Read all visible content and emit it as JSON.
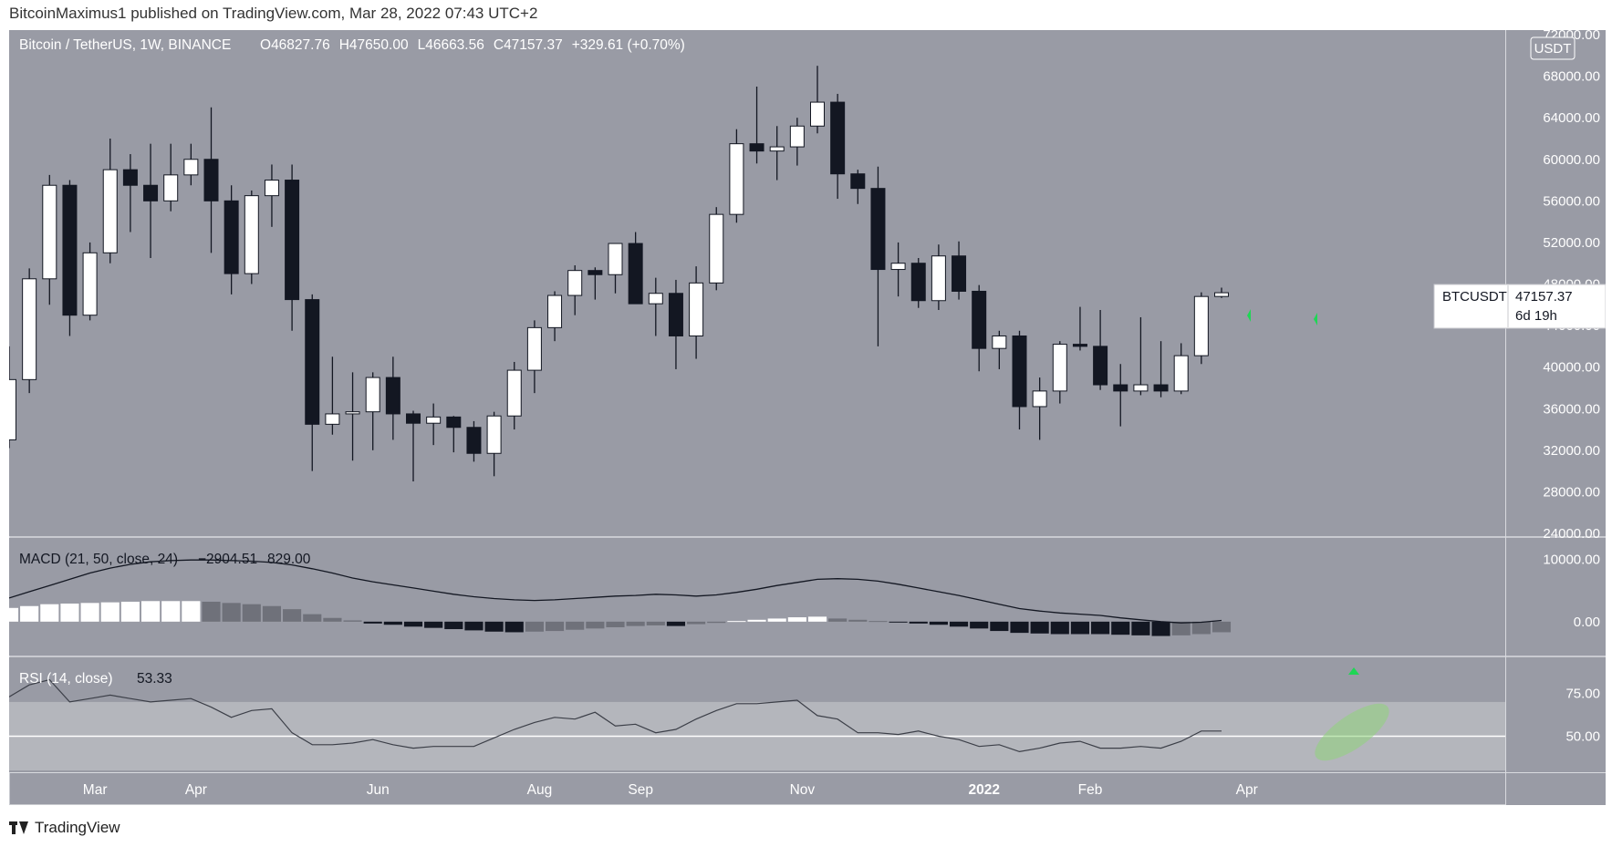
{
  "header": {
    "published_text": "BitcoinMaximus1 published on TradingView.com, Mar 28, 2022 07:43 UTC+2"
  },
  "footer": {
    "brand": "TradingView"
  },
  "price_pane": {
    "symbol_title": "Bitcoin / TetherUS, 1W, BINANCE",
    "ohlc": [
      {
        "label": "O",
        "value": "46827.76"
      },
      {
        "label": "H",
        "value": "47650.00"
      },
      {
        "label": "L",
        "value": "46663.56"
      },
      {
        "label": "C",
        "value": "47157.37"
      }
    ],
    "change": "+329.61 (+0.70%)",
    "currency_badge": "USDT",
    "price_tag": {
      "symbol": "BTCUSDT",
      "price": "47157.37",
      "countdown": "6d 19h"
    },
    "y_ticks": [
      "72000.00",
      "68000.00",
      "64000.00",
      "60000.00",
      "56000.00",
      "52000.00",
      "48000.00",
      "44000.00",
      "40000.00",
      "36000.00",
      "32000.00",
      "28000.00",
      "24000.00"
    ]
  },
  "macd_pane": {
    "title": "MACD (21, 50, close, 24)",
    "values": [
      "−2904.51",
      "829.00"
    ],
    "y_ticks": [
      "10000.00",
      "0.00"
    ]
  },
  "rsi_pane": {
    "title": "RSI (14, close)",
    "value": "53.33",
    "y_ticks": [
      "75.00",
      "50.00"
    ]
  },
  "x_ticks": [
    "Mar",
    "Apr",
    "Jun",
    "Aug",
    "Sep",
    "Nov",
    "2022",
    "Feb",
    "Apr"
  ],
  "colors": {
    "pane_bg": "#999ba5",
    "bull": "#ffffff",
    "bear": "#131722",
    "wick": "#131722",
    "arrow": "#1fd655",
    "rsi_band": "#b4b6bc"
  },
  "chart_data": {
    "type": "candlestick",
    "interval": "1W",
    "price_ylim": [
      24000,
      72000
    ],
    "candles": [
      {
        "o": 33000,
        "h": 42000,
        "l": 32200,
        "c": 38800
      },
      {
        "o": 38800,
        "h": 49500,
        "l": 37500,
        "c": 48500
      },
      {
        "o": 48500,
        "h": 58500,
        "l": 46000,
        "c": 57500
      },
      {
        "o": 57500,
        "h": 58000,
        "l": 43000,
        "c": 45000
      },
      {
        "o": 45000,
        "h": 52000,
        "l": 44500,
        "c": 51000
      },
      {
        "o": 51000,
        "h": 62000,
        "l": 50000,
        "c": 59000
      },
      {
        "o": 59000,
        "h": 60500,
        "l": 53000,
        "c": 57500
      },
      {
        "o": 57500,
        "h": 61500,
        "l": 50500,
        "c": 56000
      },
      {
        "o": 56000,
        "h": 61500,
        "l": 55000,
        "c": 58500
      },
      {
        "o": 58500,
        "h": 61500,
        "l": 57500,
        "c": 60000
      },
      {
        "o": 60000,
        "h": 65000,
        "l": 51000,
        "c": 56000
      },
      {
        "o": 56000,
        "h": 57500,
        "l": 47000,
        "c": 49000
      },
      {
        "o": 49000,
        "h": 57000,
        "l": 48000,
        "c": 56500
      },
      {
        "o": 56500,
        "h": 59500,
        "l": 53500,
        "c": 58000
      },
      {
        "o": 58000,
        "h": 59500,
        "l": 43500,
        "c": 46500
      },
      {
        "o": 46500,
        "h": 47000,
        "l": 30000,
        "c": 34500
      },
      {
        "o": 34500,
        "h": 41000,
        "l": 33500,
        "c": 35500
      },
      {
        "o": 35500,
        "h": 39500,
        "l": 31000,
        "c": 35700
      },
      {
        "o": 35700,
        "h": 39500,
        "l": 32000,
        "c": 39000
      },
      {
        "o": 39000,
        "h": 41000,
        "l": 33000,
        "c": 35500
      },
      {
        "o": 35500,
        "h": 35800,
        "l": 29000,
        "c": 34600
      },
      {
        "o": 34600,
        "h": 36500,
        "l": 32500,
        "c": 35200
      },
      {
        "o": 35200,
        "h": 35300,
        "l": 31800,
        "c": 34200
      },
      {
        "o": 34200,
        "h": 34800,
        "l": 30900,
        "c": 31700
      },
      {
        "o": 31700,
        "h": 35700,
        "l": 29500,
        "c": 35300
      },
      {
        "o": 35300,
        "h": 40500,
        "l": 34000,
        "c": 39700
      },
      {
        "o": 39700,
        "h": 44500,
        "l": 37500,
        "c": 43800
      },
      {
        "o": 43800,
        "h": 47300,
        "l": 42500,
        "c": 46900
      },
      {
        "o": 46900,
        "h": 49800,
        "l": 45000,
        "c": 49300
      },
      {
        "o": 49300,
        "h": 49600,
        "l": 46500,
        "c": 48900
      },
      {
        "o": 48900,
        "h": 51700,
        "l": 47100,
        "c": 51900
      },
      {
        "o": 51900,
        "h": 53000,
        "l": 46200,
        "c": 46100
      },
      {
        "o": 46100,
        "h": 48600,
        "l": 43000,
        "c": 47100
      },
      {
        "o": 47100,
        "h": 48400,
        "l": 39800,
        "c": 43000
      },
      {
        "o": 43000,
        "h": 49700,
        "l": 40800,
        "c": 48100
      },
      {
        "o": 48100,
        "h": 55400,
        "l": 47400,
        "c": 54700
      },
      {
        "o": 54700,
        "h": 62900,
        "l": 53900,
        "c": 61500
      },
      {
        "o": 61500,
        "h": 67000,
        "l": 59600,
        "c": 60800
      },
      {
        "o": 60800,
        "h": 63200,
        "l": 58000,
        "c": 61200
      },
      {
        "o": 61200,
        "h": 64000,
        "l": 59400,
        "c": 63200
      },
      {
        "o": 63200,
        "h": 69000,
        "l": 62500,
        "c": 65500
      },
      {
        "o": 65500,
        "h": 66300,
        "l": 56200,
        "c": 58600
      },
      {
        "o": 58600,
        "h": 59000,
        "l": 55700,
        "c": 57200
      },
      {
        "o": 57200,
        "h": 59300,
        "l": 42000,
        "c": 49400
      },
      {
        "o": 49400,
        "h": 52000,
        "l": 46800,
        "c": 50000
      },
      {
        "o": 50000,
        "h": 50500,
        "l": 45700,
        "c": 46400
      },
      {
        "o": 46400,
        "h": 51800,
        "l": 45500,
        "c": 50700
      },
      {
        "o": 50700,
        "h": 52100,
        "l": 46500,
        "c": 47300
      },
      {
        "o": 47300,
        "h": 47900,
        "l": 39600,
        "c": 41800
      },
      {
        "o": 41800,
        "h": 43500,
        "l": 39800,
        "c": 43000
      },
      {
        "o": 43000,
        "h": 43500,
        "l": 34000,
        "c": 36200
      },
      {
        "o": 36200,
        "h": 39000,
        "l": 33000,
        "c": 37700
      },
      {
        "o": 37700,
        "h": 42500,
        "l": 36500,
        "c": 42200
      },
      {
        "o": 42200,
        "h": 45800,
        "l": 41600,
        "c": 42000
      },
      {
        "o": 42000,
        "h": 45500,
        "l": 37800,
        "c": 38300
      },
      {
        "o": 38300,
        "h": 40300,
        "l": 34300,
        "c": 37700
      },
      {
        "o": 37700,
        "h": 44800,
        "l": 37300,
        "c": 38300
      },
      {
        "o": 38300,
        "h": 42500,
        "l": 37100,
        "c": 37700
      },
      {
        "o": 37700,
        "h": 42300,
        "l": 37400,
        "c": 41100
      },
      {
        "o": 41100,
        "h": 47200,
        "l": 40300,
        "c": 46800
      },
      {
        "o": 46800,
        "h": 47650,
        "l": 46660,
        "c": 47160
      }
    ],
    "macd_histogram": [
      2200,
      2500,
      2800,
      2900,
      3000,
      3100,
      3200,
      3300,
      3300,
      3300,
      3200,
      3000,
      2800,
      2500,
      2000,
      1200,
      600,
      200,
      -300,
      -500,
      -800,
      -1000,
      -1200,
      -1400,
      -1600,
      -1700,
      -1600,
      -1500,
      -1300,
      -1100,
      -900,
      -700,
      -600,
      -700,
      -400,
      -200,
      100,
      300,
      500,
      700,
      800,
      500,
      300,
      100,
      -100,
      -300,
      -500,
      -800,
      -1100,
      -1500,
      -1800,
      -1900,
      -2000,
      -2000,
      -2000,
      -2100,
      -2200,
      -2300,
      -2200,
      -2000,
      -1700
    ],
    "macd_signal_line": [
      3800,
      4800,
      5800,
      6800,
      7800,
      8600,
      9200,
      9600,
      9800,
      9900,
      9900,
      9800,
      9700,
      9500,
      9100,
      8500,
      7800,
      7000,
      6400,
      5900,
      5400,
      4900,
      4400,
      4000,
      3700,
      3500,
      3400,
      3500,
      3700,
      3900,
      4100,
      4200,
      4400,
      4300,
      4100,
      4300,
      4700,
      5200,
      5800,
      6300,
      6800,
      6900,
      6800,
      6500,
      6000,
      5400,
      4800,
      4200,
      3500,
      2800,
      2100,
      1700,
      1400,
      1200,
      1000,
      600,
      300,
      0,
      -200,
      -100,
      200
    ],
    "macd_ylim": [
      -5000,
      13000
    ],
    "rsi": [
      73,
      80,
      83,
      70,
      72,
      74,
      72,
      70,
      71,
      72,
      67,
      61,
      65,
      66,
      52,
      45,
      45,
      46,
      48,
      45,
      43,
      44,
      44,
      44,
      49,
      54,
      58,
      61,
      60,
      64,
      56,
      57,
      52,
      54,
      60,
      65,
      69,
      69,
      70,
      71,
      62,
      60,
      52,
      52,
      51,
      53,
      50,
      48,
      44,
      45,
      41,
      43,
      46,
      47,
      43,
      43,
      44,
      43,
      47,
      53,
      53
    ],
    "rsi_ylim": [
      30,
      95
    ],
    "rsi_band": [
      30,
      70
    ],
    "rsi_midline": 50
  }
}
